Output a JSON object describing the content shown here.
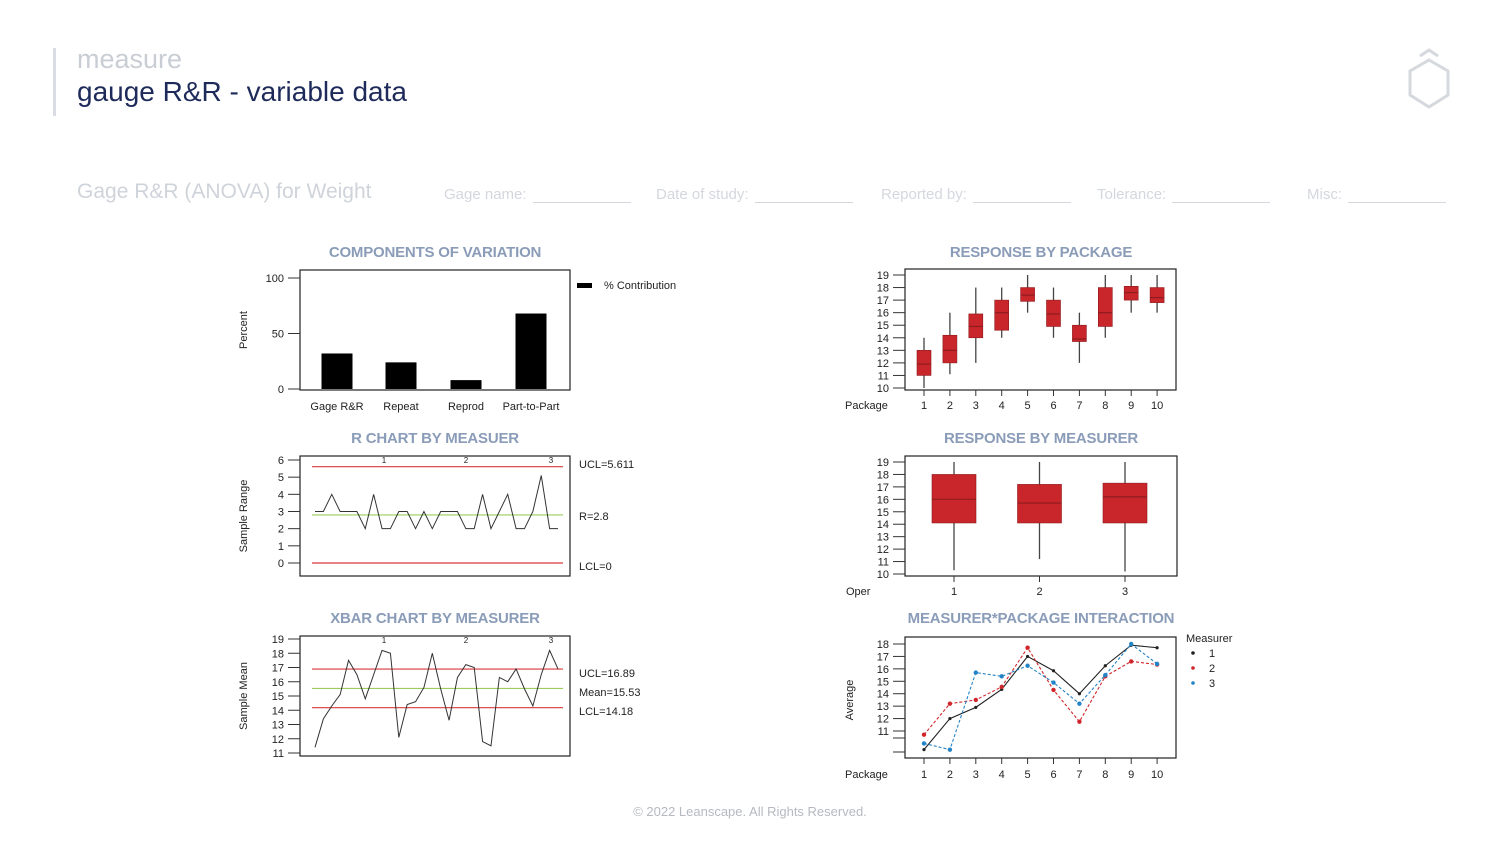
{
  "header": {
    "section": "measure",
    "title": "gauge R&R - variable data"
  },
  "study": {
    "title": "Gage R&R (ANOVA) for Weight",
    "fields": [
      {
        "label": "Gage name:"
      },
      {
        "label": "Date of study:"
      },
      {
        "label": "Reported by:"
      },
      {
        "label": "Tolerance:"
      },
      {
        "label": "Misc:"
      }
    ]
  },
  "footer": "© 2022 Leanscape. All Rights Reserved.",
  "colors": {
    "box": "#c8262a",
    "ucl": "#d9393c",
    "center": "#9acd5a",
    "m1": "#222222",
    "m2": "#d0262b",
    "m3": "#2383c7",
    "title": "#8a9cb8"
  },
  "chart_data": [
    {
      "type": "bar",
      "title": "COMPONENTS OF VARIATION",
      "ylabel": "Percent",
      "ylim": [
        0,
        100
      ],
      "yticks": [
        0,
        50,
        100
      ],
      "categories": [
        "Gage R&R",
        "Repeat",
        "Reprod",
        "Part-to-Part"
      ],
      "series": [
        {
          "name": "% Contribution",
          "values": [
            32,
            24,
            8,
            68
          ]
        }
      ]
    },
    {
      "type": "box",
      "title": "RESPONSE BY PACKAGE",
      "xlabel": "Package",
      "ylim": [
        10,
        19
      ],
      "yticks": [
        10,
        11,
        12,
        13,
        14,
        15,
        16,
        17,
        18,
        19
      ],
      "categories": [
        "1",
        "2",
        "3",
        "4",
        "5",
        "6",
        "7",
        "8",
        "9",
        "10"
      ],
      "boxes": [
        [
          10,
          11,
          11.9,
          13,
          14
        ],
        [
          11.1,
          12,
          13,
          14.2,
          16
        ],
        [
          12,
          14,
          14.9,
          15.9,
          18
        ],
        [
          14,
          14.6,
          16,
          17,
          18
        ],
        [
          16,
          16.9,
          17.4,
          18,
          19
        ],
        [
          14,
          14.9,
          15.9,
          17,
          18
        ],
        [
          12,
          13.7,
          13.9,
          15,
          16
        ],
        [
          14,
          14.9,
          16,
          18,
          19
        ],
        [
          16,
          17,
          17.6,
          18.1,
          19
        ],
        [
          16,
          16.8,
          17.2,
          18,
          19
        ]
      ]
    },
    {
      "type": "line",
      "title": "R CHART BY MEASUER",
      "ylabel": "Sample Range",
      "ylim": [
        0,
        6
      ],
      "yticks": [
        0,
        1,
        2,
        3,
        4,
        5,
        6
      ],
      "groups": [
        "1",
        "2",
        "3"
      ],
      "values": [
        3,
        3,
        4,
        3,
        3,
        3,
        2,
        4,
        2,
        2,
        3,
        3,
        2,
        3,
        2,
        3,
        3,
        3,
        2,
        2,
        4,
        2,
        3,
        4,
        2,
        2,
        3,
        5.1,
        2,
        2
      ],
      "ucl": 5.611,
      "center": 2.8,
      "lcl": 0,
      "labels": {
        "ucl": "UCL=5.611",
        "center": "R=2.8",
        "lcl": "LCL=0"
      }
    },
    {
      "type": "box",
      "title": "RESPONSE BY MEASURER",
      "xlabel": "Oper",
      "ylim": [
        10,
        19
      ],
      "yticks": [
        10,
        11,
        12,
        13,
        14,
        15,
        16,
        17,
        18,
        19
      ],
      "categories": [
        "1",
        "2",
        "3"
      ],
      "boxes": [
        [
          10.3,
          14.1,
          16,
          18,
          19
        ],
        [
          11.2,
          14.1,
          15.7,
          17.2,
          19
        ],
        [
          10.2,
          14.1,
          16.2,
          17.3,
          19
        ]
      ]
    },
    {
      "type": "line",
      "title": "XBAR CHART BY MEASURER",
      "ylabel": "Sample Mean",
      "ylim": [
        11,
        19
      ],
      "yticks": [
        11,
        12,
        13,
        14,
        15,
        16,
        17,
        18,
        19
      ],
      "groups": [
        "1",
        "2",
        "3"
      ],
      "values": [
        11.4,
        13.4,
        14.3,
        15.1,
        17.5,
        16.5,
        14.8,
        16.5,
        18.2,
        18.0,
        12.1,
        14.4,
        14.6,
        15.6,
        18.0,
        15.5,
        13.3,
        16.3,
        17.2,
        17.0,
        11.8,
        11.5,
        16.3,
        16.0,
        16.9,
        15.5,
        14.3,
        16.5,
        18.2,
        16.9
      ],
      "ucl": 16.89,
      "center": 15.53,
      "lcl": 14.18,
      "labels": {
        "ucl": "UCL=16.89",
        "center": "Mean=15.53",
        "lcl": "LCL=14.18"
      }
    },
    {
      "type": "line",
      "title": "MEASURER*PACKAGE INTERACTION",
      "xlabel": "Package",
      "ylabel": "Average",
      "yticks": [
        11,
        12,
        13,
        14,
        15,
        16,
        17,
        18
      ],
      "categories": [
        "1",
        "2",
        "3",
        "4",
        "5",
        "6",
        "7",
        "8",
        "9",
        "10"
      ],
      "legend_title": "Measurer",
      "legend": "right",
      "series": [
        {
          "name": "1",
          "values": [
            9.5,
            12.0,
            12.9,
            14.35,
            17.0,
            15.85,
            14.0,
            16.25,
            17.9,
            17.7
          ]
        },
        {
          "name": "2",
          "values": [
            10.7,
            13.2,
            13.5,
            14.55,
            17.7,
            14.3,
            11.75,
            15.4,
            16.6,
            16.35
          ]
        },
        {
          "name": "3",
          "values": [
            10.0,
            9.5,
            15.7,
            15.4,
            16.25,
            14.9,
            13.2,
            15.5,
            18.0,
            16.4
          ]
        }
      ]
    }
  ]
}
